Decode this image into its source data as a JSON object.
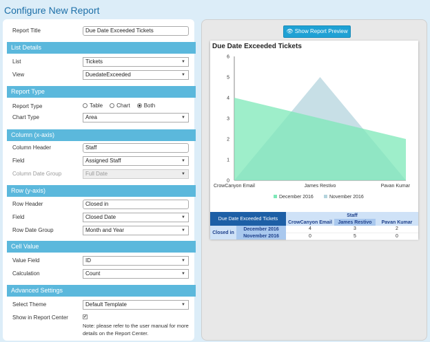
{
  "page_title": "Configure New Report",
  "form": {
    "report_title_label": "Report Title",
    "report_title_value": "Due Date Exceeded Tickets",
    "sections": {
      "list_details": "List Details",
      "report_type": "Report Type",
      "column": "Column (x-axis)",
      "row": "Row (y-axis)",
      "cell_value": "Cell Value",
      "advanced": "Advanced Settings"
    },
    "list_label": "List",
    "list_value": "Tickets",
    "view_label": "View",
    "view_value": "DuedateExceeded",
    "report_type_label": "Report Type",
    "report_type_options": [
      "Table",
      "Chart",
      "Both"
    ],
    "report_type_selected": "Both",
    "chart_type_label": "Chart Type",
    "chart_type_value": "Area",
    "column_header_label": "Column Header",
    "column_header_value": "Staff",
    "column_field_label": "Field",
    "column_field_value": "Assigned Staff",
    "column_date_group_label": "Column Date Group",
    "column_date_group_value": "Full Date",
    "row_header_label": "Row Header",
    "row_header_value": "Closed in",
    "row_field_label": "Field",
    "row_field_value": "Closed Date",
    "row_date_group_label": "Row Date Group",
    "row_date_group_value": "Month and Year",
    "value_field_label": "Value Field",
    "value_field_value": "ID",
    "calculation_label": "Calculation",
    "calculation_value": "Count",
    "select_theme_label": "Select Theme",
    "select_theme_value": "Default Template",
    "show_in_center_label": "Show in Report Center",
    "show_in_center_checked": "✔",
    "note": "Note: please refer to the user manual for more details on the Report Center."
  },
  "preview": {
    "button_label": "Show Report Preview",
    "chart_title": "Due Date Exceeded Tickets",
    "table": {
      "title": "Due Date Exceeded Tickets",
      "column_header": "Staff",
      "row_header": "Closed in",
      "columns": [
        "CrowCanyon Email",
        "James Restivo",
        "Pavan Kumar"
      ],
      "rows": [
        {
          "label": "December 2016",
          "values": [
            "4",
            "3",
            "2"
          ]
        },
        {
          "label": "November 2016",
          "values": [
            "0",
            "5",
            "0"
          ]
        }
      ]
    }
  },
  "chart_data": {
    "type": "area",
    "title": "Due Date Exceeded Tickets",
    "categories": [
      "CrowCanyon Email",
      "James Restivo",
      "Pavan Kumar"
    ],
    "series": [
      {
        "name": "December 2016",
        "values": [
          4,
          3,
          2
        ],
        "color": "#7de8b8"
      },
      {
        "name": "November 2016",
        "values": [
          0,
          5,
          0
        ],
        "color": "#b4d4dd"
      }
    ],
    "ylim": [
      0,
      6
    ],
    "yticks": [
      "0",
      "1",
      "2",
      "3",
      "4",
      "5",
      "6"
    ],
    "grid": false,
    "legend": "bottom"
  }
}
